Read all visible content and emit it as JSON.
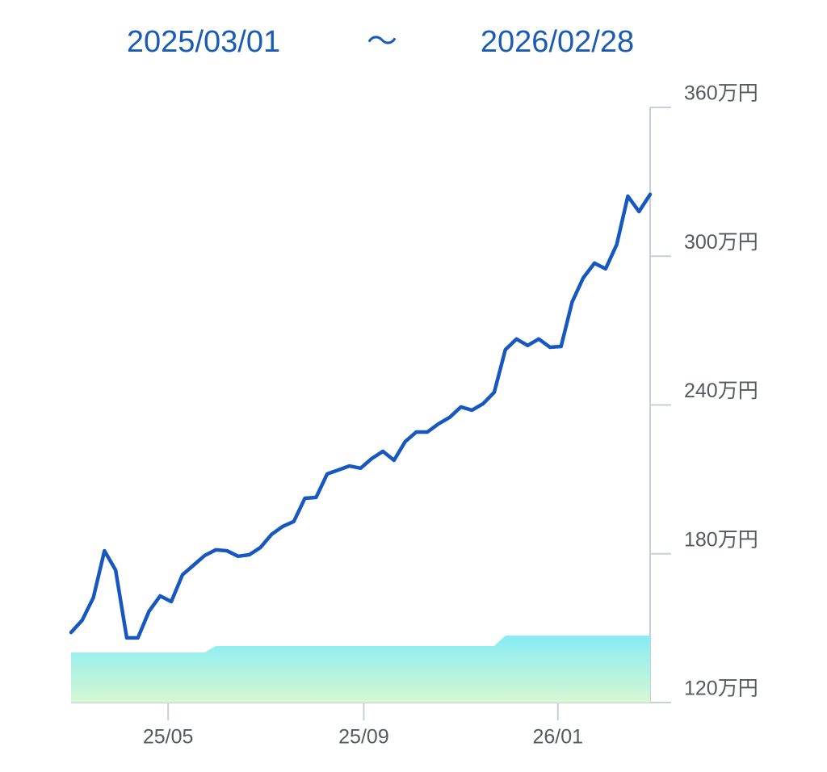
{
  "header": {
    "start": "2025/03/01",
    "separator": "〜",
    "end": "2026/02/28"
  },
  "chart_data": {
    "type": "line",
    "xlim": [
      0,
      364
    ],
    "xticks": [
      {
        "value": 61,
        "label": "25/05"
      },
      {
        "value": 184,
        "label": "25/09"
      },
      {
        "value": 306,
        "label": "26/01"
      }
    ],
    "ylim": [
      120,
      360
    ],
    "yticks": [
      {
        "value": 120,
        "label": "120万円"
      },
      {
        "value": 180,
        "label": "180万円"
      },
      {
        "value": 240,
        "label": "240万円"
      },
      {
        "value": 300,
        "label": "300万円"
      },
      {
        "value": 360,
        "label": "360万円"
      }
    ],
    "x": [
      0,
      7,
      14,
      21,
      28,
      35,
      42,
      49,
      56,
      63,
      70,
      77,
      84,
      91,
      98,
      105,
      112,
      119,
      126,
      133,
      140,
      147,
      154,
      161,
      168,
      175,
      182,
      189,
      196,
      203,
      210,
      217,
      224,
      231,
      238,
      245,
      252,
      259,
      266,
      273,
      280,
      287,
      294,
      301,
      308,
      315,
      322,
      329,
      336,
      343,
      350,
      357,
      364
    ],
    "series": [
      {
        "kind": "area",
        "color": "#86ecf5",
        "color2": "#d6f7d2",
        "values": [
          140.2,
          140.2,
          140.2,
          140.2,
          140.2,
          140.2,
          140.2,
          140.2,
          140.2,
          140.2,
          140.2,
          140.2,
          140.2,
          142.8,
          142.8,
          142.8,
          142.8,
          142.8,
          142.8,
          142.8,
          142.8,
          142.8,
          142.8,
          142.8,
          142.8,
          142.8,
          142.8,
          142.8,
          142.8,
          142.8,
          142.8,
          142.8,
          142.8,
          142.8,
          142.8,
          142.8,
          142.8,
          142.8,
          142.8,
          147.0,
          147.0,
          147.0,
          147.0,
          147.0,
          147.0,
          147.0,
          147.0,
          147.0,
          147.0,
          147.0,
          147.0,
          147.0,
          147.0
        ]
      },
      {
        "kind": "line",
        "color": "#1658c0",
        "values": [
          148.3,
          153.2,
          162.3,
          181.2,
          173.4,
          146.1,
          146.1,
          156.8,
          163.0,
          160.7,
          171.5,
          175.4,
          179.3,
          181.6,
          181.2,
          179.0,
          179.6,
          182.5,
          187.8,
          191.0,
          193.0,
          202.4,
          202.7,
          212.2,
          213.8,
          215.4,
          214.5,
          218.4,
          221.3,
          217.7,
          225.2,
          229.1,
          229.1,
          232.4,
          235.0,
          239.2,
          237.9,
          240.5,
          245.1,
          262.3,
          266.6,
          264.0,
          266.6,
          263.3,
          263.6,
          281.6,
          291.3,
          297.2,
          294.9,
          304.7,
          324.2,
          318.0,
          324.9
        ]
      }
    ]
  }
}
